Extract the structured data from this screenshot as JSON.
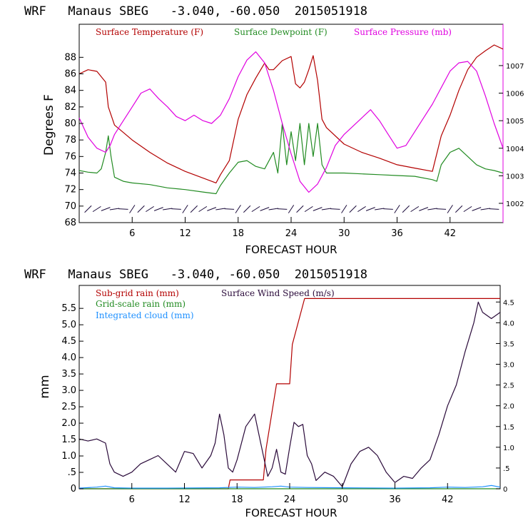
{
  "colors": {
    "temperature": "#b30000",
    "dewpoint": "#228b22",
    "pressure": "#e000e0",
    "subgrid_rain": "#b30000",
    "gridscale_rain": "#228b22",
    "cloud": "#1e90ff",
    "wind": "#2a0a3a",
    "barbs": "#1a0a3a"
  },
  "chart_data": [
    {
      "type": "line",
      "title": "WRF   Manaus SBEG   -3.040, -60.050  2015051918",
      "xlabel": "FORECAST HOUR",
      "ylabel": "Degrees F",
      "xlim": [
        0,
        48
      ],
      "ylim": [
        68,
        92
      ],
      "y2lim": [
        1001.3,
        1008.5
      ],
      "x_ticks": [
        "6",
        "12",
        "18",
        "24",
        "30",
        "36",
        "42"
      ],
      "x_tick_values": [
        6,
        12,
        18,
        24,
        30,
        36,
        42
      ],
      "y_ticks": [
        "68",
        "70",
        "72",
        "74",
        "76",
        "78",
        "80",
        "82",
        "84",
        "86",
        "88"
      ],
      "y_tick_values": [
        68,
        70,
        72,
        74,
        76,
        78,
        80,
        82,
        84,
        86,
        88
      ],
      "y2_ticks": [
        "1002",
        "1003",
        "1004",
        "1005",
        "1006",
        "1007"
      ],
      "y2_tick_values": [
        1002,
        1003,
        1004,
        1005,
        1006,
        1007
      ],
      "legend": [
        "Surface Temperature (F)",
        "Surface Dewpoint (F)",
        "Surface Pressure (mb)"
      ],
      "legend_position": "top",
      "grid": false,
      "series": [
        {
          "name": "Surface Temperature (F)",
          "axis": "left",
          "x": [
            0,
            1,
            2,
            3,
            3.3,
            4,
            5,
            6,
            8,
            10,
            12,
            14,
            15.5,
            16,
            17,
            18,
            19,
            20,
            21,
            21.5,
            22,
            23,
            24,
            24.5,
            25,
            25.5,
            26,
            26.5,
            27,
            27.5,
            28,
            30,
            32,
            34,
            36,
            38,
            40,
            41,
            42,
            43,
            44,
            45,
            46,
            47,
            48
          ],
          "values": [
            86,
            86.5,
            86.3,
            85,
            82,
            79.8,
            78.9,
            78,
            76.5,
            75.2,
            74.2,
            73.4,
            72.8,
            73.8,
            75.5,
            80.5,
            83.5,
            85.5,
            87.3,
            86.5,
            86.5,
            87.6,
            88.1,
            84.8,
            84.3,
            85,
            86.5,
            88.2,
            85.2,
            80.5,
            79.5,
            77.5,
            76.5,
            75.8,
            75,
            74.6,
            74.2,
            78.5,
            81,
            84,
            86.5,
            88,
            88.8,
            89.5,
            89
          ]
        },
        {
          "name": "Surface Dewpoint (F)",
          "axis": "left",
          "x": [
            0,
            1,
            2,
            2.5,
            3,
            3.3,
            3.6,
            4,
            5,
            6,
            8,
            10,
            12,
            14,
            15.5,
            16,
            17,
            18,
            19,
            20,
            21,
            22,
            22.5,
            23,
            23.5,
            24,
            24.5,
            25,
            25.5,
            26,
            26.5,
            27,
            27.5,
            28,
            30,
            32,
            34,
            36,
            38,
            40,
            40.5,
            41,
            42,
            43,
            44,
            45,
            46,
            47,
            48
          ],
          "values": [
            74.3,
            74.1,
            74,
            74.5,
            76.5,
            78.5,
            76,
            73.5,
            73,
            72.8,
            72.6,
            72.2,
            72,
            71.7,
            71.5,
            72.5,
            74,
            75.3,
            75.5,
            74.8,
            74.5,
            76.5,
            74,
            80,
            75,
            79,
            75.5,
            80,
            75,
            80,
            76,
            80,
            75,
            74,
            74,
            73.9,
            73.8,
            73.7,
            73.6,
            73.2,
            73,
            75,
            76.5,
            77,
            76,
            75,
            74.5,
            74.3,
            74
          ]
        },
        {
          "name": "Surface Pressure (mb)",
          "axis": "right",
          "x": [
            0,
            1,
            2,
            3,
            3.5,
            4,
            5,
            6,
            7,
            8,
            9,
            10,
            11,
            12,
            13,
            14,
            15,
            16,
            17,
            18,
            19,
            20,
            21,
            22,
            23,
            24,
            25,
            26,
            27,
            28,
            29,
            30,
            31,
            32,
            33,
            34,
            35,
            36,
            37,
            38,
            39,
            40,
            41,
            42,
            43,
            44,
            45,
            46,
            47,
            48
          ],
          "values": [
            1005.1,
            1004.4,
            1004.0,
            1003.85,
            1004.1,
            1004.5,
            1005.0,
            1005.5,
            1006.0,
            1006.15,
            1005.8,
            1005.5,
            1005.15,
            1005.0,
            1005.2,
            1005.0,
            1004.9,
            1005.2,
            1005.8,
            1006.6,
            1007.2,
            1007.5,
            1007.1,
            1006.1,
            1004.9,
            1003.8,
            1002.8,
            1002.4,
            1002.7,
            1003.3,
            1004.1,
            1004.5,
            1004.8,
            1005.1,
            1005.4,
            1005.0,
            1004.5,
            1004.0,
            1004.1,
            1004.6,
            1005.1,
            1005.6,
            1006.2,
            1006.8,
            1007.1,
            1007.15,
            1006.8,
            1005.9,
            1004.9,
            1004.0
          ]
        }
      ],
      "wind_barbs": "barbs along bottom of upper panel, one per hour"
    },
    {
      "type": "line",
      "title": "WRF   Manaus SBEG   -3.040, -60.050  2015051918",
      "xlabel": "FORECAST HOUR",
      "ylabel": "mm",
      "xlim": [
        0,
        48
      ],
      "ylim": [
        0,
        6.2
      ],
      "y2lim": [
        0,
        4.9
      ],
      "x_ticks": [
        "6",
        "12",
        "18",
        "24",
        "30",
        "36",
        "42"
      ],
      "x_tick_values": [
        6,
        12,
        18,
        24,
        30,
        36,
        42
      ],
      "y_ticks": [
        "0",
        ".5",
        "1.0",
        "1.5",
        "2.0",
        "2.5",
        "3.0",
        "3.5",
        "4.0",
        "4.5",
        "5.0",
        "5.5"
      ],
      "y_tick_values": [
        0,
        0.5,
        1,
        1.5,
        2,
        2.5,
        3,
        3.5,
        4,
        4.5,
        5,
        5.5
      ],
      "y2_ticks": [
        "0",
        ".5",
        "1.0",
        "1.5",
        "2.0",
        "2.5",
        "3.0",
        "3.5",
        "4.0",
        "4.5"
      ],
      "y2_tick_values": [
        0,
        0.5,
        1,
        1.5,
        2,
        2.5,
        3,
        3.5,
        4,
        4.5
      ],
      "legend": [
        "Sub-grid rain (mm)",
        "Surface Wind Speed (m/s)",
        "Grid-scale rain (mm)",
        "Integrated cloud (mm)"
      ],
      "legend_position": "top-left",
      "grid": false,
      "series": [
        {
          "name": "Sub-grid rain (mm)",
          "axis": "left",
          "x": [
            0,
            17,
            17.2,
            21,
            21.3,
            22.5,
            22.8,
            24,
            24.3,
            25.7,
            26,
            46,
            48
          ],
          "values": [
            0,
            0,
            0.27,
            0.27,
            1.2,
            3.2,
            3.2,
            3.2,
            4.4,
            5.8,
            5.8,
            5.8,
            5.8
          ]
        },
        {
          "name": "Grid-scale rain (mm)",
          "axis": "left",
          "x": [
            0,
            48
          ],
          "values": [
            0,
            0
          ]
        },
        {
          "name": "Integrated cloud (mm)",
          "axis": "left",
          "x": [
            0,
            2,
            3,
            4,
            6,
            10,
            16,
            18,
            20,
            22,
            23,
            24,
            26,
            30,
            36,
            40,
            42,
            44,
            46,
            47,
            48
          ],
          "values": [
            0.02,
            0.05,
            0.08,
            0.03,
            0.02,
            0.02,
            0.03,
            0.05,
            0.04,
            0.06,
            0.08,
            0.05,
            0.04,
            0.03,
            0.02,
            0.03,
            0.05,
            0.04,
            0.06,
            0.1,
            0.05
          ]
        },
        {
          "name": "Surface Wind Speed (m/s)",
          "axis": "right",
          "x": [
            0,
            1,
            2,
            3,
            3.5,
            4,
            5,
            6,
            7,
            8,
            9,
            10,
            11,
            12,
            13,
            14,
            15,
            15.5,
            16,
            16.5,
            17,
            17.5,
            18,
            19,
            20,
            21,
            21.5,
            22,
            22.5,
            23,
            23.5,
            24,
            24.5,
            25,
            25.5,
            26,
            26.5,
            27,
            28,
            29,
            30,
            31,
            32,
            33,
            34,
            35,
            36,
            37,
            38,
            39,
            40,
            41,
            42,
            43,
            44,
            45,
            45.5,
            46,
            47,
            48
          ],
          "values": [
            1.2,
            1.15,
            1.2,
            1.1,
            0.6,
            0.4,
            0.3,
            0.4,
            0.6,
            0.7,
            0.8,
            0.6,
            0.4,
            0.9,
            0.85,
            0.5,
            0.8,
            1.1,
            1.8,
            1.3,
            0.5,
            0.4,
            0.7,
            1.5,
            1.8,
            0.8,
            0.3,
            0.5,
            0.95,
            0.4,
            0.35,
            1.0,
            1.6,
            1.5,
            1.55,
            0.8,
            0.6,
            0.2,
            0.4,
            0.3,
            0.05,
            0.6,
            0.9,
            1.0,
            0.8,
            0.4,
            0.15,
            0.3,
            0.25,
            0.5,
            0.7,
            1.3,
            2.0,
            2.5,
            3.3,
            4.0,
            4.5,
            4.25,
            4.1,
            4.25
          ]
        }
      ]
    }
  ]
}
